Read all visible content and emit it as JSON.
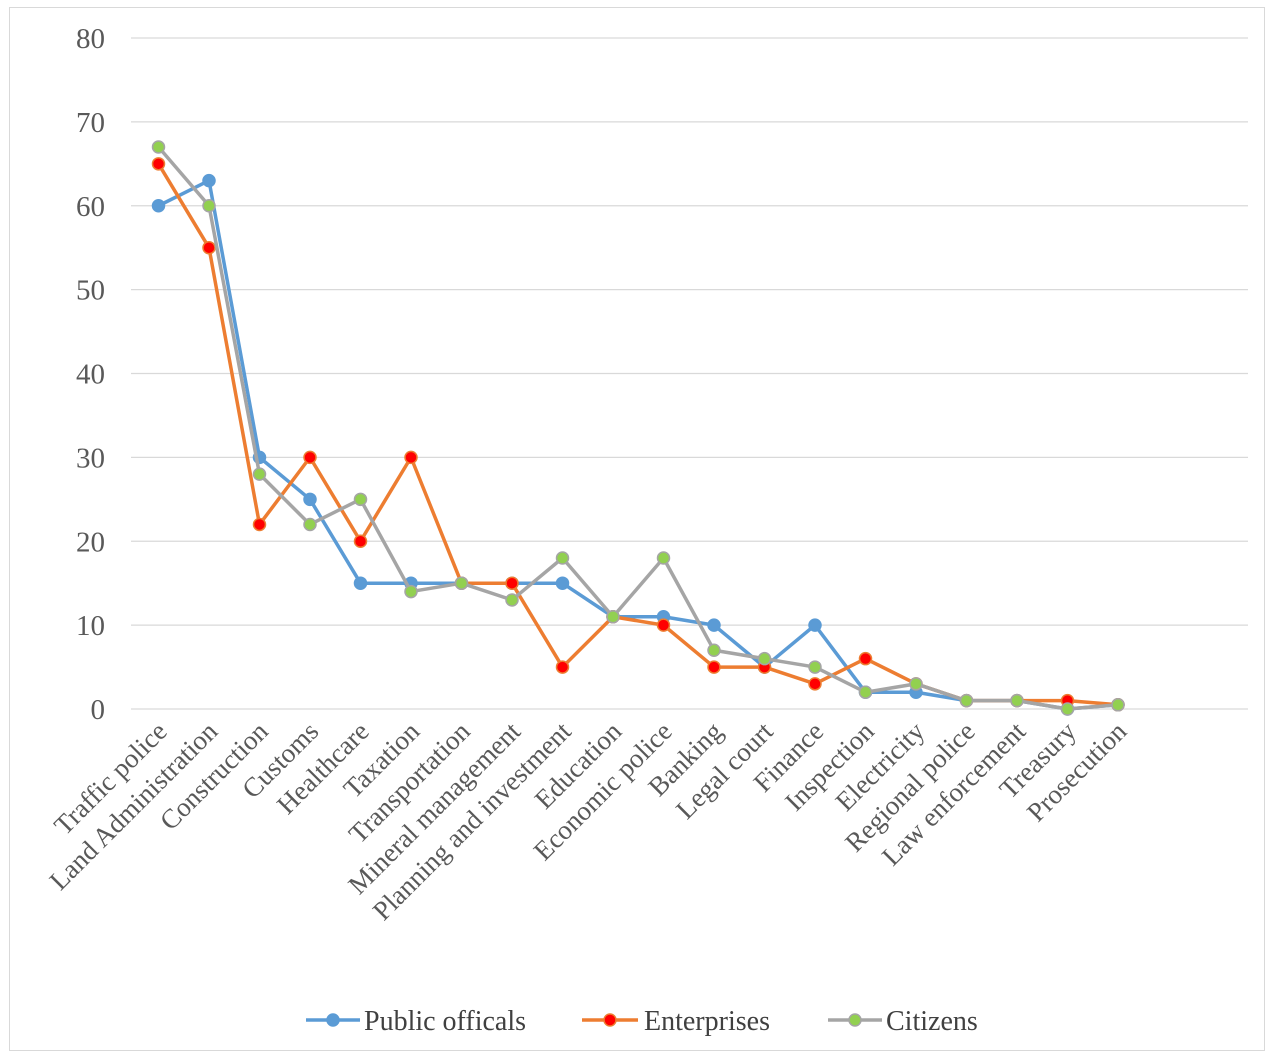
{
  "chart_data": {
    "type": "line",
    "title": "",
    "xlabel": "",
    "ylabel": "",
    "ylim": [
      0,
      80
    ],
    "yticks": [
      0,
      10,
      20,
      30,
      40,
      50,
      60,
      70,
      80
    ],
    "grid": true,
    "legend_position": "bottom",
    "categories": [
      "Traffic police",
      "Land Administration",
      "Construction",
      "Customs",
      "Healthcare",
      "Taxation",
      "Transportation",
      "Mineral management",
      "Planning and investment",
      "Education",
      "Economic police",
      "Banking",
      "Legal court",
      "Finance",
      "Inspection",
      "Electricity",
      "Regional police",
      "Law enforcement",
      "Treasury",
      "Prosecution"
    ],
    "series": [
      {
        "name": "Public officals",
        "line_color": "#5b9bd5",
        "marker_color": "#5b9bd5",
        "values": [
          60,
          63,
          30,
          25,
          15,
          15,
          15,
          15,
          15,
          11,
          11,
          10,
          5,
          10,
          2,
          2,
          1,
          1,
          0,
          0.5
        ]
      },
      {
        "name": "Enterprises",
        "line_color": "#ed7d31",
        "marker_color": "#ff0000",
        "values": [
          65,
          55,
          22,
          30,
          20,
          30,
          15,
          15,
          5,
          11,
          10,
          5,
          5,
          3,
          6,
          3,
          1,
          1,
          1,
          0.5
        ]
      },
      {
        "name": "Citizens",
        "line_color": "#a5a5a5",
        "marker_color": "#92d050",
        "values": [
          67,
          60,
          28,
          22,
          25,
          14,
          15,
          13,
          18,
          11,
          18,
          7,
          6,
          5,
          2,
          3,
          1,
          1,
          0,
          0.5
        ]
      }
    ],
    "colors": {
      "grid": "#d9d9d9",
      "axis_text": "#595959"
    }
  }
}
